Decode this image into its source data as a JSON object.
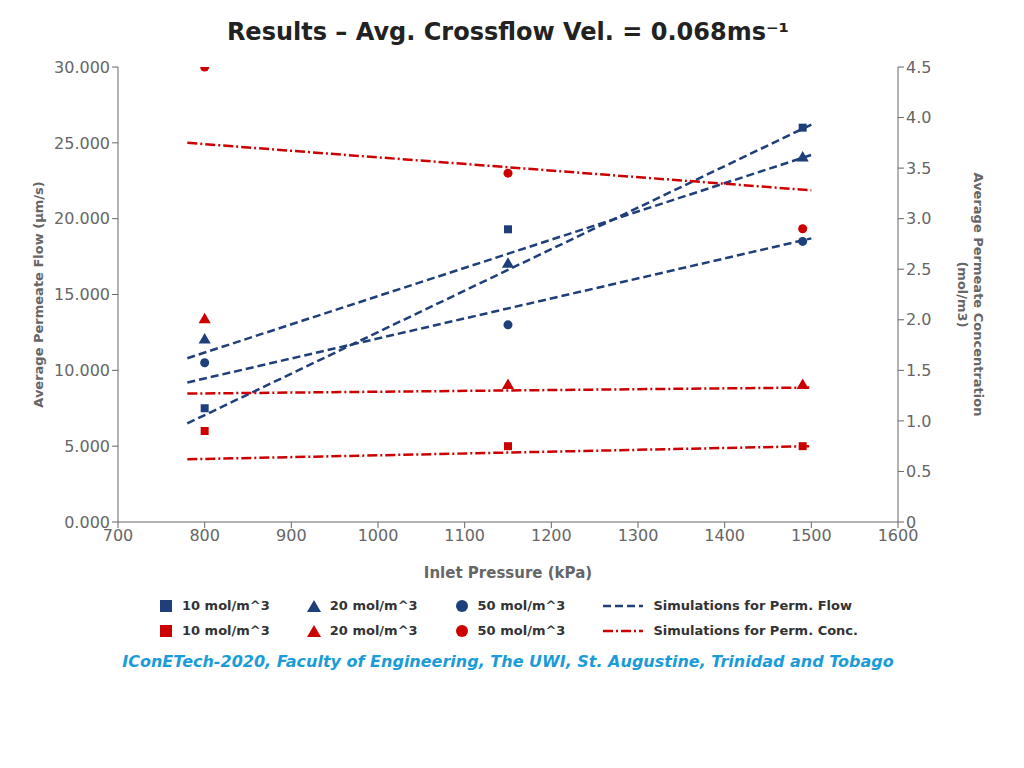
{
  "chart_data": {
    "type": "scatter",
    "title": "Results – Avg. Crossflow Vel. = 0.068ms⁻¹",
    "xlabel": "Inlet Pressure (kPa)",
    "ylabel": "Average Permeate Flow (μm/s)",
    "y2label": "Average Permeate Concentration\n(mol/m3)",
    "xlim": [
      700,
      1600
    ],
    "xticks": [
      700,
      800,
      900,
      1000,
      1100,
      1200,
      1300,
      1400,
      1500,
      1600
    ],
    "ylim": [
      0,
      30000
    ],
    "yticks": [
      {
        "value": 0,
        "label": "0.000"
      },
      {
        "value": 5000,
        "label": "5.000"
      },
      {
        "value": 10000,
        "label": "10.000"
      },
      {
        "value": 15000,
        "label": "15.000"
      },
      {
        "value": 20000,
        "label": "20.000"
      },
      {
        "value": 25000,
        "label": "25.000"
      },
      {
        "value": 30000,
        "label": "30.000"
      }
    ],
    "y2lim": [
      0,
      4.5
    ],
    "y2ticks": [
      0,
      0.5,
      {
        "value": 1,
        "label": "1.0"
      },
      1.5,
      {
        "value": 2,
        "label": "2.0"
      },
      2.5,
      {
        "value": 3,
        "label": "3.0"
      },
      3.5,
      {
        "value": 4,
        "label": "4.0"
      },
      4.5
    ],
    "grid": false,
    "legend": "bottom",
    "annotations": [
      {
        "text": "IConETech-2020, Faculty of Engineering, The UWI, St. Augustine, Trinidad and Tobago",
        "color": "#1B9CD8"
      }
    ],
    "series": [
      {
        "name": "10 mol/m^3",
        "type": "scatter",
        "marker": "square",
        "color": "#1F3F7A",
        "x": [
          800,
          1150,
          1490
        ],
        "values": [
          7500,
          19300,
          26000
        ]
      },
      {
        "name": "20 mol/m^3",
        "type": "scatter",
        "marker": "triangle",
        "color": "#1F3F7A",
        "x": [
          800,
          1150,
          1490
        ],
        "values": [
          12000,
          17000,
          24000
        ]
      },
      {
        "name": "50 mol/m^3",
        "type": "scatter",
        "marker": "circle",
        "color": "#1F3F7A",
        "x": [
          800,
          1150,
          1490
        ],
        "values": [
          10500,
          13000,
          18500
        ]
      },
      {
        "name": "Simulations for Perm. Flow",
        "type": "line",
        "line_style": "dashed",
        "color": "#1F3F7A",
        "x": [
          780,
          1500
        ],
        "values": [
          6500,
          26200
        ]
      },
      {
        "name": "Simulations for Perm. Flow",
        "type": "line",
        "line_style": "dashed",
        "color": "#1F3F7A",
        "x": [
          780,
          1500
        ],
        "values": [
          10800,
          24200
        ]
      },
      {
        "name": "Simulations for Perm. Flow",
        "type": "line",
        "line_style": "dashed",
        "color": "#1F3F7A",
        "x": [
          780,
          1500
        ],
        "values": [
          9200,
          18700
        ]
      },
      {
        "name": "10 mol/m^3",
        "type": "scatter",
        "marker": "square",
        "color": "#CC0000",
        "axis": "y2",
        "x": [
          800,
          1150,
          1490
        ],
        "values": [
          0.9,
          0.75,
          0.75
        ]
      },
      {
        "name": "20 mol/m^3",
        "type": "scatter",
        "marker": "triangle",
        "color": "#CC0000",
        "axis": "y2",
        "x": [
          800,
          1150,
          1490
        ],
        "values": [
          2.0,
          1.35,
          1.35
        ]
      },
      {
        "name": "50 mol/m^3",
        "type": "scatter",
        "marker": "circle",
        "color": "#CC0000",
        "axis": "y2",
        "x": [
          800,
          1150,
          1490
        ],
        "values": [
          4.5,
          3.45,
          2.9
        ]
      },
      {
        "name": "Simulations for Perm. Conc.",
        "type": "line",
        "line_style": "dashdot",
        "color": "#CC0000",
        "axis": "y2",
        "x": [
          780,
          1500
        ],
        "values": [
          0.62,
          0.75
        ]
      },
      {
        "name": "Simulations for Perm. Conc.",
        "type": "line",
        "line_style": "dashdot",
        "color": "#CC0000",
        "axis": "y2",
        "x": [
          780,
          1500
        ],
        "values": [
          1.27,
          1.33
        ]
      },
      {
        "name": "Simulations for Perm. Conc.",
        "type": "line",
        "line_style": "dashdot",
        "color": "#CC0000",
        "axis": "y2",
        "x": [
          780,
          1500
        ],
        "values": [
          3.75,
          3.28
        ]
      }
    ]
  }
}
